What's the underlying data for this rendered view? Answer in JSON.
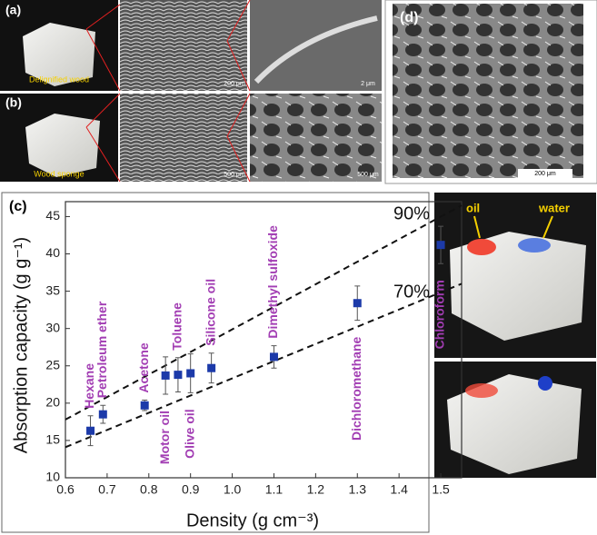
{
  "panels": {
    "a": {
      "label": "(a)",
      "caption": "Delignified wood",
      "scale_1": "200 μm",
      "scale_2": "2 μm"
    },
    "b": {
      "label": "(b)",
      "caption": "Wood sponge",
      "scale_1": "500 μm",
      "scale_2": "500 μm"
    },
    "d": {
      "label": "(d)",
      "scale": "200 μm"
    },
    "photo": {
      "oil": "oil",
      "water": "water"
    }
  },
  "chart_data": {
    "type": "scatter",
    "label": "(c)",
    "xlabel": "Density (g cm⁻³)",
    "ylabel": "Absorption capacity (g g⁻¹)",
    "xlim": [
      0.6,
      1.55
    ],
    "ylim": [
      10,
      47
    ],
    "xticks": [
      0.6,
      0.7,
      0.8,
      0.9,
      {
        "value": 1.0,
        "label": "1.0"
      },
      1.1,
      1.2,
      1.3,
      1.4,
      1.5
    ],
    "yticks": [
      10,
      15,
      20,
      25,
      30,
      35,
      40,
      45
    ],
    "series": [
      {
        "color": "#1c3aa9",
        "x": [
          0.66,
          0.69,
          0.79,
          0.84,
          0.87,
          0.9,
          0.95,
          1.1,
          1.3,
          1.5
        ],
        "y": [
          16.3,
          18.5,
          19.7,
          23.7,
          23.8,
          24.0,
          24.7,
          26.2,
          33.4,
          41.2
        ],
        "err": [
          2.0,
          1.2,
          0.7,
          2.5,
          2.3,
          2.6,
          2.0,
          1.5,
          2.3,
          2.5
        ],
        "labels": [
          "Hexane",
          "Petroleum ether",
          "Acetone",
          "Motor oil",
          "Toluene",
          "Olive oil",
          "Silicone oil",
          "Dimethyl sulfoxide",
          "Dichloromethane",
          "Chloroform"
        ]
      }
    ],
    "lines": [
      {
        "name": "90%",
        "color": "#111",
        "x": [
          0.6,
          1.55
        ],
        "y": [
          17.8,
          46.5
        ]
      },
      {
        "name": "70%",
        "color": "#111",
        "x": [
          0.6,
          1.55
        ],
        "y": [
          14.1,
          36.0
        ]
      }
    ]
  }
}
